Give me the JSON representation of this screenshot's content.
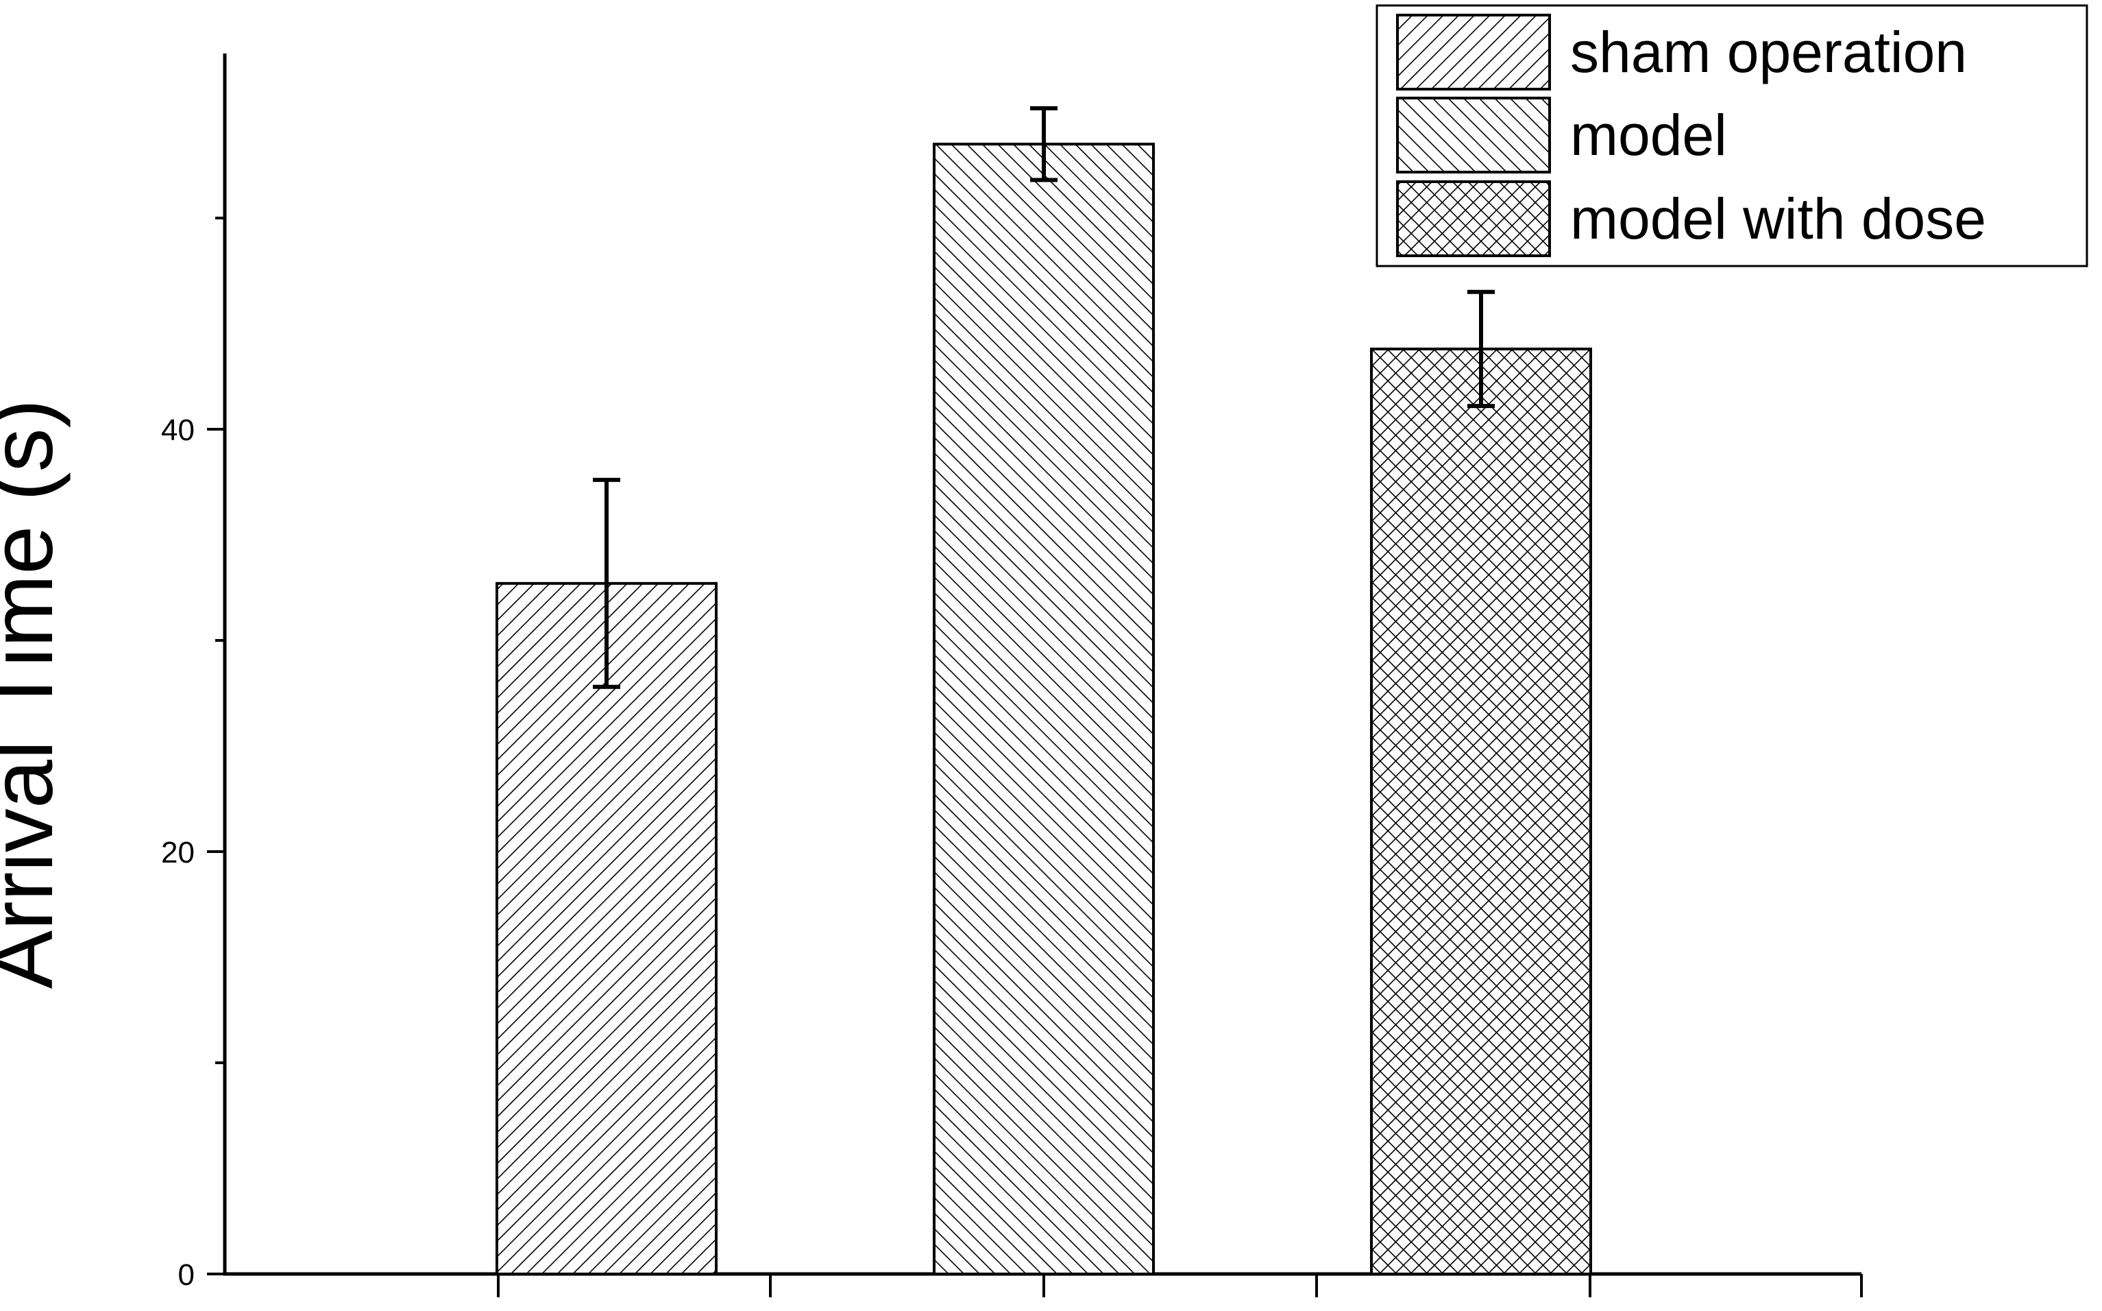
{
  "chart_data": {
    "type": "bar",
    "categories": [
      "sham operation",
      "model",
      "model with dose"
    ],
    "series": [
      {
        "name": "sham operation",
        "value": 32.7,
        "error": 4.9,
        "pattern": "forward-diagonal"
      },
      {
        "name": "model",
        "value": 53.5,
        "error": 1.7,
        "pattern": "backward-diagonal"
      },
      {
        "name": "model with dose",
        "value": 43.8,
        "error": 2.7,
        "pattern": "crosshatch"
      }
    ],
    "xlabel": "",
    "ylabel": "Arrival Time (s)",
    "ylim": [
      0,
      57
    ],
    "yticks_major": [
      0,
      20,
      40
    ],
    "yticks_minor": [
      10,
      30,
      50
    ],
    "grid": false,
    "legend_position": "top-right",
    "bar_fill": "#ffffff",
    "bar_stroke": "#000000"
  }
}
